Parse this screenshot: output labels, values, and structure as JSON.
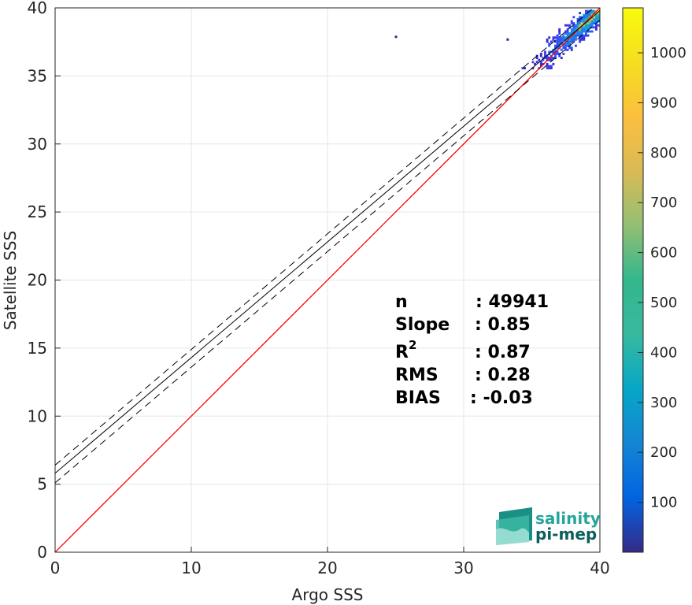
{
  "chart_data": {
    "type": "heatmap",
    "xlabel": "Argo SSS",
    "ylabel": "Satellite SSS",
    "xlim": [
      0,
      40
    ],
    "ylim": [
      0,
      40
    ],
    "x_ticks": [
      "0",
      "10",
      "20",
      "30",
      "40"
    ],
    "y_ticks": [
      "0",
      "5",
      "10",
      "15",
      "20",
      "25",
      "30",
      "35",
      "40"
    ],
    "grid": true,
    "series": [
      {
        "kind": "reference-line",
        "x": [
          0,
          40
        ],
        "y": [
          0,
          40
        ],
        "color": "#ff0000"
      },
      {
        "kind": "regression-line",
        "x": [
          0,
          40
        ],
        "y": [
          5.8,
          39.8
        ],
        "color": "#000000"
      },
      {
        "kind": "upper-bound-dashed",
        "x": [
          0,
          40
        ],
        "y": [
          6.4,
          40.4
        ],
        "color": "#000000"
      },
      {
        "kind": "lower-bound-dashed",
        "x": [
          0,
          40
        ],
        "y": [
          5.1,
          39.1
        ],
        "color": "#000000"
      }
    ],
    "density": {
      "x_range": [
        33.5,
        40
      ],
      "y_range": [
        35.5,
        39.8
      ],
      "outliers": [
        [
          25,
          37.9
        ],
        [
          33.2,
          37.7
        ]
      ],
      "peak": 1090
    },
    "stats": [
      {
        "label": "n",
        "value": ": 49941"
      },
      {
        "label": "Slope",
        "value": ": 0.85"
      },
      {
        "label": "R",
        "sup": "2",
        "value": ": 0.87"
      },
      {
        "label": "RMS",
        "value": ": 0.28"
      },
      {
        "label": "BIAS",
        "value": ": -0.03"
      }
    ],
    "colorbar": {
      "range": [
        0,
        1090
      ],
      "ticks": [
        "100",
        "200",
        "300",
        "400",
        "500",
        "600",
        "700",
        "800",
        "900",
        "1000"
      ],
      "colormap": "parula"
    }
  },
  "logo": {
    "line1": "salinity",
    "line2": "pi-mep",
    "color1": "#26a69a",
    "color2": "#0d5e5a"
  }
}
